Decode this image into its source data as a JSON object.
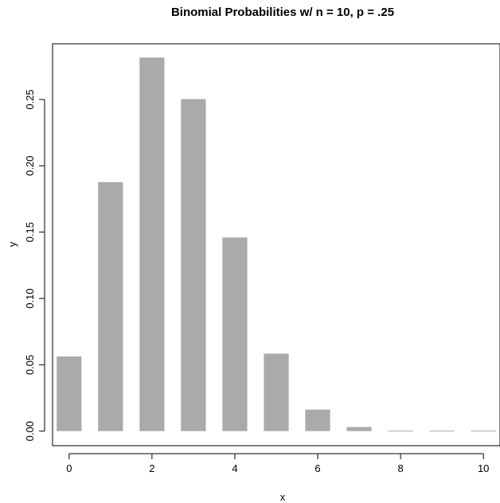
{
  "chart_data": {
    "type": "bar",
    "title": "Binomial Probabilities w/ n = 10, p = .25",
    "xlabel": "x",
    "ylabel": "y",
    "x": [
      0,
      1,
      2,
      3,
      4,
      5,
      6,
      7,
      8,
      9,
      10
    ],
    "values": [
      0.0563,
      0.1877,
      0.2816,
      0.2503,
      0.146,
      0.0584,
      0.0162,
      0.0031,
      0.0004,
      3e-05,
      1e-06
    ],
    "xlim": [
      -0.4,
      10.4
    ],
    "ylim": [
      -0.011,
      0.292
    ],
    "x_ticks": [
      "0",
      "2",
      "4",
      "6",
      "8",
      "10"
    ],
    "y_ticks": [
      "0.00",
      "0.05",
      "0.10",
      "0.15",
      "0.20",
      "0.25"
    ],
    "bar_color": "#aaaaaa",
    "grid": false,
    "legend": "none"
  }
}
